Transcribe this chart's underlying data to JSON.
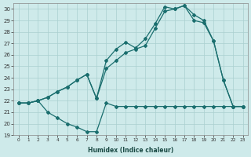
{
  "xlabel": "Humidex (Indice chaleur)",
  "background_color": "#ceeaea",
  "grid_color": "#aacfcf",
  "line_color": "#1a6e6e",
  "xlim": [
    -0.5,
    23.5
  ],
  "ylim": [
    19,
    30.5
  ],
  "yticks": [
    19,
    20,
    21,
    22,
    23,
    24,
    25,
    26,
    27,
    28,
    29,
    30
  ],
  "xtick_labels": [
    "0",
    "1",
    "2",
    "3",
    "4",
    "5",
    "6",
    "7",
    "8",
    "9",
    "10",
    "11",
    "12",
    "13",
    "14",
    "15",
    "16",
    "17",
    "18",
    "19",
    "20",
    "21",
    "22",
    "23"
  ],
  "xticks": [
    0,
    1,
    2,
    3,
    4,
    5,
    6,
    7,
    8,
    9,
    10,
    11,
    12,
    13,
    14,
    15,
    16,
    17,
    18,
    19,
    20,
    21,
    22,
    23
  ],
  "series_bottom_x": [
    0,
    1,
    2,
    3,
    4,
    5,
    6,
    7,
    8,
    9,
    10,
    11,
    12,
    13,
    14,
    15,
    16,
    17,
    18,
    19,
    20,
    21,
    22,
    23
  ],
  "series_bottom_y": [
    21.8,
    21.8,
    22.0,
    21.0,
    20.5,
    20.0,
    19.7,
    19.3,
    19.3,
    21.8,
    21.5,
    21.5,
    21.5,
    21.5,
    21.5,
    21.5,
    21.5,
    21.5,
    21.5,
    21.5,
    21.5,
    21.5,
    21.5,
    21.5
  ],
  "series_top_x": [
    0,
    1,
    2,
    3,
    4,
    5,
    6,
    7,
    8,
    9,
    10,
    11,
    12,
    13,
    14,
    15,
    16,
    17,
    18,
    19,
    20,
    21,
    22,
    23
  ],
  "series_top_y": [
    21.8,
    21.8,
    22.0,
    22.3,
    22.8,
    23.2,
    23.8,
    24.3,
    22.2,
    25.5,
    26.5,
    27.1,
    26.6,
    27.4,
    28.7,
    30.2,
    30.0,
    30.3,
    29.5,
    29.0,
    27.2,
    23.8,
    21.5,
    21.5
  ],
  "series_mid_x": [
    0,
    1,
    2,
    3,
    4,
    5,
    6,
    7,
    8,
    9,
    10,
    11,
    12,
    13,
    14,
    15,
    16,
    17,
    18,
    19,
    20,
    21,
    22,
    23
  ],
  "series_mid_y": [
    21.8,
    21.8,
    22.0,
    22.3,
    22.8,
    23.2,
    23.8,
    24.3,
    22.2,
    24.8,
    25.5,
    26.2,
    26.5,
    26.8,
    28.3,
    29.8,
    30.0,
    30.3,
    29.0,
    28.8,
    27.2,
    23.8,
    21.5,
    21.5
  ]
}
